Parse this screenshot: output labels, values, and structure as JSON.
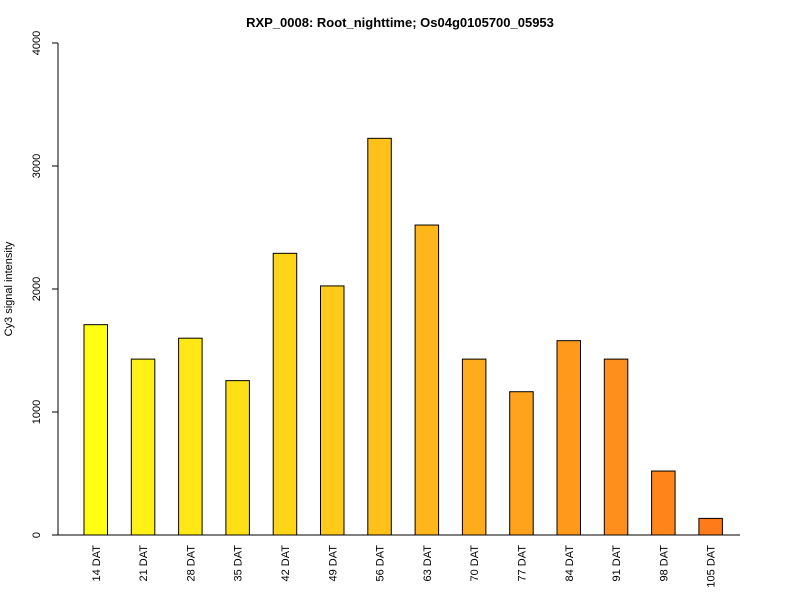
{
  "chart_data": {
    "type": "bar",
    "title": "RXP_0008: Root_nighttime; Os04g0105700_05953",
    "xlabel": "",
    "ylabel": "Cy3 signal intensity",
    "ylim": [
      0,
      4000
    ],
    "yticks": [
      0,
      1000,
      2000,
      3000,
      4000
    ],
    "grid": false,
    "categories": [
      "14 DAT",
      "21 DAT",
      "28 DAT",
      "35 DAT",
      "42 DAT",
      "49 DAT",
      "56 DAT",
      "63 DAT",
      "70 DAT",
      "77 DAT",
      "84 DAT",
      "91 DAT",
      "98 DAT",
      "105 DAT"
    ],
    "values": [
      1710,
      1430,
      1600,
      1255,
      2290,
      2025,
      3225,
      2520,
      1430,
      1165,
      1580,
      1430,
      520,
      135
    ],
    "colors": [
      "#FFFF13",
      "#FFF115",
      "#FFE816",
      "#FFE017",
      "#FFD518",
      "#FFCA19",
      "#FFC01A",
      "#FFB61B",
      "#FFAC1C",
      "#FFA31C",
      "#FF991C",
      "#FF8F1C",
      "#FF851B",
      "#FF7B1A"
    ]
  }
}
